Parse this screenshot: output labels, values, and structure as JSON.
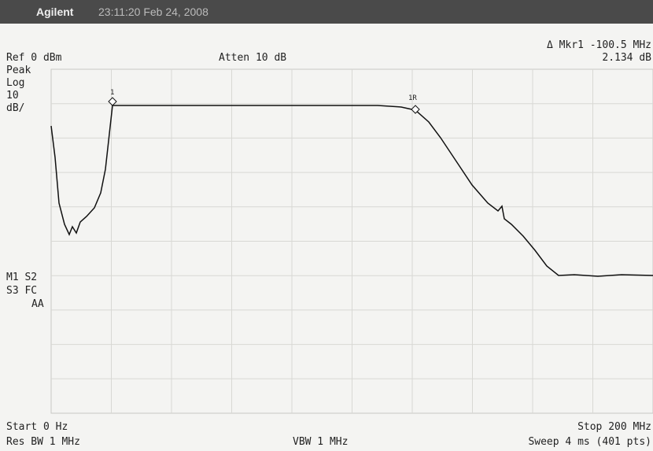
{
  "header": {
    "brand": "Agilent",
    "timestamp": "23:11:20  Feb 24, 2008"
  },
  "settings": {
    "reference": "Ref 0 dBm",
    "attenuation": "Atten 10 dB",
    "detector": "Peak",
    "scale_type": "Log",
    "scale_value": "10",
    "scale_unit": "dB/"
  },
  "marker_readout": {
    "label": "Δ Mkr1  -100.5 MHz",
    "value": "2.134 dB"
  },
  "status": {
    "line1": "M1 S2",
    "line2": "S3 FC",
    "line3": "AA"
  },
  "markers": {
    "m1": "1",
    "m1r": "1R"
  },
  "footer": {
    "start": "Start 0 Hz",
    "stop": "Stop 200 MHz",
    "rbw": "Res BW 1 MHz",
    "vbw": "VBW 1 MHz",
    "sweep": "Sweep 4 ms (401 pts)"
  }
}
